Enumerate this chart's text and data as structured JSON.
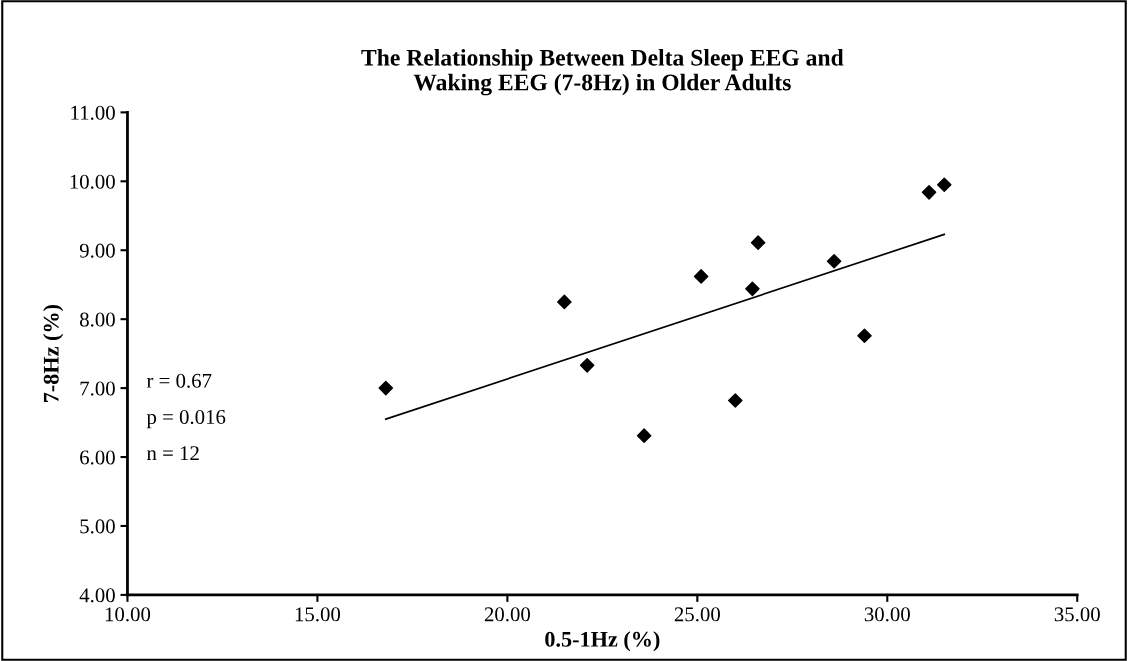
{
  "chart_data": {
    "type": "scatter",
    "title": "The Relationship Between Delta Sleep EEG and\nWaking EEG (7-8Hz) in Older Adults",
    "xlabel": "0.5-1Hz (%)",
    "ylabel": "7-8Hz (%)",
    "x": [
      16.8,
      21.5,
      22.1,
      23.6,
      25.1,
      26.0,
      26.45,
      26.6,
      28.6,
      29.4,
      31.1,
      31.5
    ],
    "series": [
      {
        "color": "#000000",
        "marker": "diamond",
        "values": [
          7.0,
          8.25,
          7.33,
          6.31,
          8.62,
          6.82,
          8.44,
          9.11,
          8.84,
          7.76,
          9.84,
          9.95
        ]
      },
      {
        "type": "line",
        "color": "#000000",
        "marker": "none",
        "x": [
          16.8,
          31.5
        ],
        "values": [
          6.55,
          9.23
        ]
      }
    ],
    "xlim": [
      10,
      35
    ],
    "ylim": [
      4,
      11
    ],
    "xticks": [
      {
        "value": 10,
        "label": "10.00"
      },
      {
        "value": 15,
        "label": "15.00"
      },
      {
        "value": 20,
        "label": "20.00"
      },
      {
        "value": 25,
        "label": "25.00"
      },
      {
        "value": 30,
        "label": "30.00"
      },
      {
        "value": 35,
        "label": "35.00"
      }
    ],
    "yticks": [
      {
        "value": 4,
        "label": "4.00"
      },
      {
        "value": 5,
        "label": "5.00"
      },
      {
        "value": 6,
        "label": "6.00"
      },
      {
        "value": 7,
        "label": "7.00"
      },
      {
        "value": 8,
        "label": "8.00"
      },
      {
        "value": 9,
        "label": "9.00"
      },
      {
        "value": 10,
        "label": "10.00"
      },
      {
        "value": 11,
        "label": "11.00"
      }
    ],
    "annotations": [
      "r = 0.67",
      "p = 0.016",
      "n = 12"
    ],
    "grid": false,
    "legend": false
  }
}
